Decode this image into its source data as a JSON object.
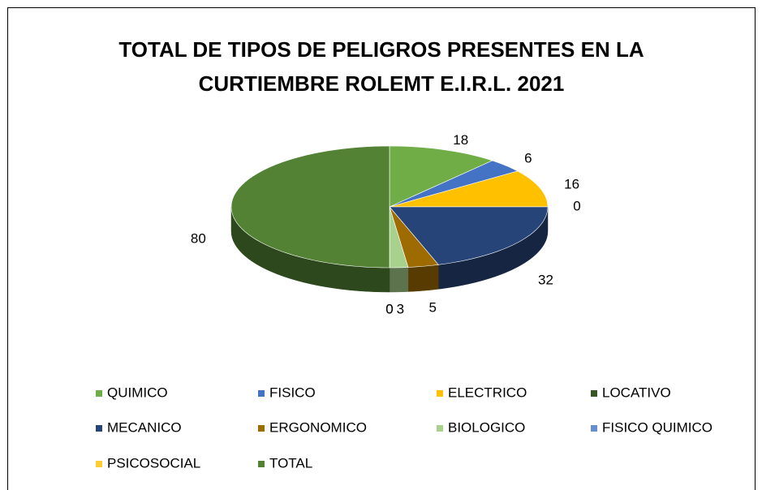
{
  "chart_data": {
    "type": "pie3d",
    "title": "TOTAL DE TIPOS DE PELIGROS PRESENTES EN LA CURTIEMBRE ROLEMT E.I.R.L. 2021",
    "categories": [
      "QUIMICO",
      "FISICO",
      "ELECTRICO",
      "LOCATIVO",
      "MECANICO",
      "ERGONOMICO",
      "BIOLOGICO",
      "FISICO QUIMICO",
      "PSICOSOCIAL",
      "TOTAL"
    ],
    "values": [
      18,
      6,
      16,
      0,
      32,
      5,
      3,
      0,
      0,
      80
    ],
    "colors": [
      "#70ad47",
      "#4472c4",
      "#ffc000",
      "#375623",
      "#264478",
      "#9e6b00",
      "#a9d18e",
      "#698ed0",
      "#ffcd33",
      "#548235"
    ],
    "legend": "bottom"
  }
}
